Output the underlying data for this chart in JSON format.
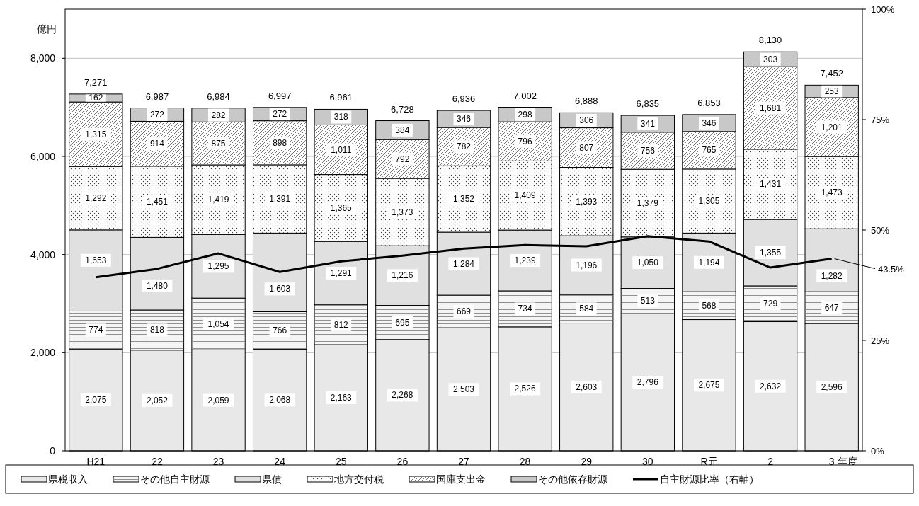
{
  "chart_data": {
    "type": "bar",
    "stacked": true,
    "ylabel": "億円",
    "xlabel": "年度",
    "categories": [
      "H21",
      "22",
      "23",
      "24",
      "25",
      "26",
      "27",
      "28",
      "29",
      "30",
      "R元",
      "2",
      "3"
    ],
    "series": [
      {
        "name": "県税収入",
        "color": "#e8e8e8",
        "values": [
          2075,
          2052,
          2059,
          2068,
          2163,
          2268,
          2503,
          2526,
          2603,
          2796,
          2675,
          2632,
          2596
        ],
        "value_labels": [
          "2,075",
          "2,052",
          "2,059",
          "2,068",
          "2,163",
          "2,268",
          "2,503",
          "2,526",
          "2,603",
          "2,796",
          "2,675",
          "2,632",
          "2,596"
        ]
      },
      {
        "name": "その他自主財源",
        "color": "#f4f4f4",
        "values": [
          774,
          818,
          1054,
          766,
          812,
          695,
          669,
          734,
          584,
          513,
          568,
          729,
          647
        ],
        "value_labels": [
          "774",
          "818",
          "1,054",
          "766",
          "812",
          "695",
          "669",
          "734",
          "584",
          "513",
          "568",
          "729",
          "647"
        ]
      },
      {
        "name": "県債",
        "color": "#e0e0e0",
        "values": [
          1653,
          1480,
          1295,
          1603,
          1291,
          1216,
          1284,
          1239,
          1196,
          1050,
          1194,
          1355,
          1282
        ],
        "value_labels": [
          "1,653",
          "1,480",
          "1,295",
          "1,603",
          "1,291",
          "1,216",
          "1,284",
          "1,239",
          "1,196",
          "1,050",
          "1,194",
          "1,355",
          "1,282"
        ]
      },
      {
        "name": "地方交付税",
        "color": "#ffffff",
        "values": [
          1292,
          1451,
          1419,
          1391,
          1365,
          1373,
          1352,
          1409,
          1393,
          1379,
          1305,
          1431,
          1473
        ],
        "value_labels": [
          "1,292",
          "1,451",
          "1,419",
          "1,391",
          "1,365",
          "1,373",
          "1,352",
          "1,409",
          "1,393",
          "1,379",
          "1,305",
          "1,431",
          "1,473"
        ]
      },
      {
        "name": "国庫支出金",
        "color": "#ffffff",
        "values": [
          1315,
          914,
          875,
          898,
          1011,
          792,
          782,
          796,
          807,
          756,
          765,
          1681,
          1201
        ],
        "value_labels": [
          "1,315",
          "914",
          "875",
          "898",
          "1,011",
          "792",
          "782",
          "796",
          "807",
          "756",
          "765",
          "1,681",
          "1,201"
        ]
      },
      {
        "name": "その他依存財源",
        "color": "#c8c8c8",
        "values": [
          162,
          272,
          282,
          272,
          318,
          384,
          346,
          298,
          306,
          341,
          346,
          303,
          253
        ],
        "value_labels": [
          "162",
          "272",
          "282",
          "272",
          "318",
          "384",
          "346",
          "298",
          "306",
          "341",
          "346",
          "303",
          "253"
        ]
      },
      {
        "name": "自主財源比率（右軸）",
        "type": "line",
        "axis": "y2",
        "color": "#000000",
        "values": [
          39.3,
          41.2,
          44.7,
          40.5,
          42.9,
          44.2,
          45.8,
          46.6,
          46.3,
          48.6,
          47.4,
          41.5,
          43.5
        ],
        "value_labels": [
          null,
          null,
          null,
          null,
          null,
          null,
          null,
          null,
          null,
          null,
          null,
          null,
          "43.5%"
        ]
      }
    ],
    "totals": [
      "7,271",
      "6,987",
      "6,984",
      "6,997",
      "6,961",
      "6,728",
      "6,936",
      "7,002",
      "6,888",
      "6,835",
      "6,853",
      "8,130",
      "7,452"
    ],
    "ylim": [
      0,
      9000
    ],
    "yticks": [
      {
        "value": 0,
        "label": "0"
      },
      {
        "value": 2000,
        "label": "2,000"
      },
      {
        "value": 4000,
        "label": "4,000"
      },
      {
        "value": 6000,
        "label": "6,000"
      },
      {
        "value": 8000,
        "label": "8,000"
      }
    ],
    "y2lim": [
      0,
      100
    ],
    "y2ticks": [
      {
        "value": 0,
        "label": "0%"
      },
      {
        "value": 25,
        "label": "25%"
      },
      {
        "value": 50,
        "label": "50%"
      },
      {
        "value": 75,
        "label": "75%"
      },
      {
        "value": 100,
        "label": "100%"
      }
    ],
    "grid": "y",
    "legend": "bottom",
    "marker": "none",
    "line_style": "solid"
  }
}
